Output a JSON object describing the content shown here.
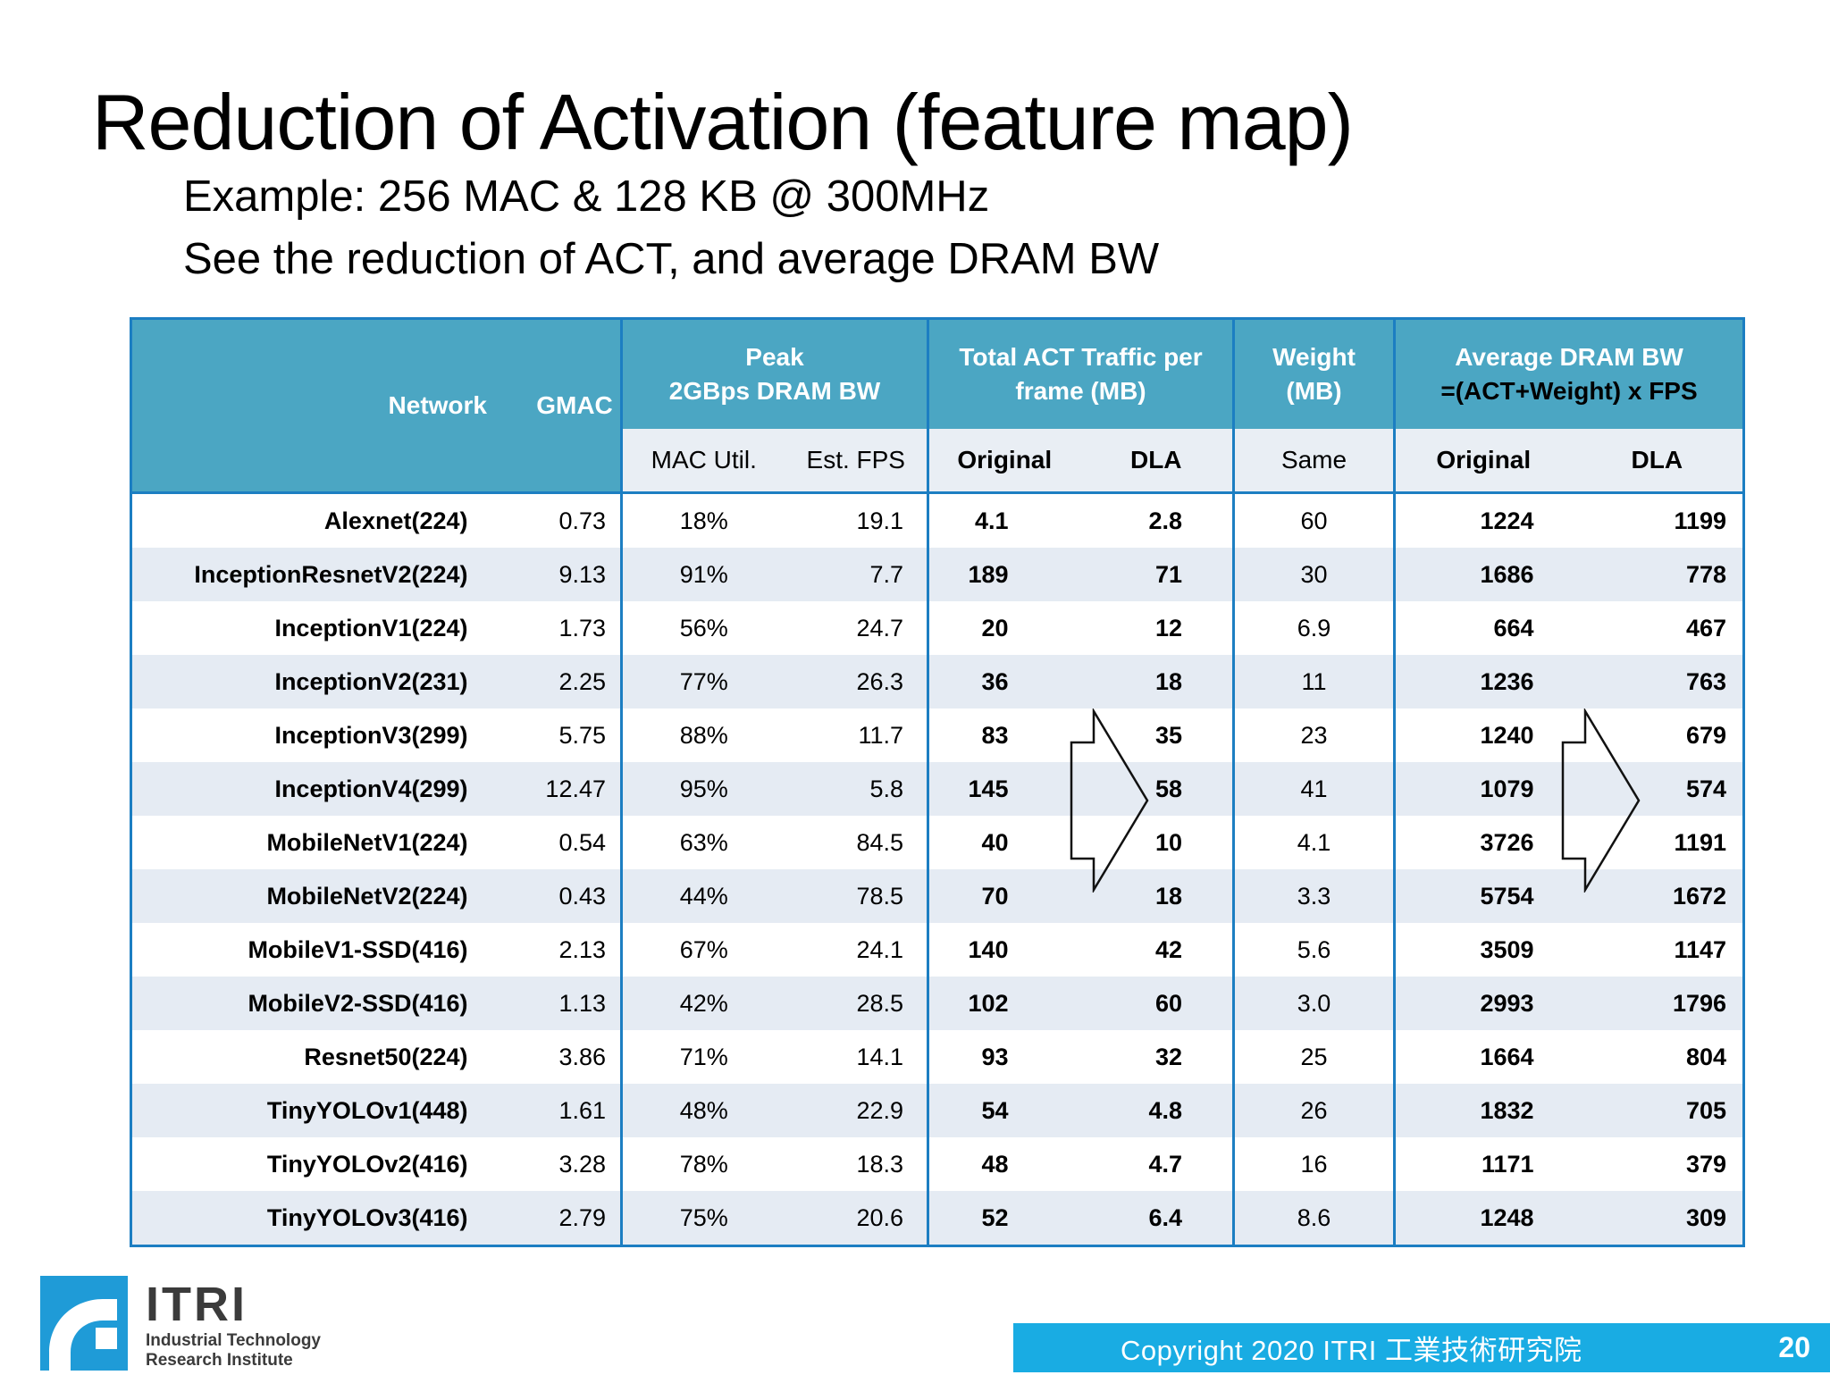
{
  "slide": {
    "title": "Reduction of Activation (feature map)",
    "subtitle_line1": "Example: 256  MAC & 128 KB @ 300MHz",
    "subtitle_line2": "See the reduction of ACT, and average DRAM BW"
  },
  "table": {
    "group_headers": {
      "network": "Network",
      "gmac": "GMAC",
      "peak_line1": "Peak",
      "peak_line2": "2GBps DRAM BW",
      "act_line1": "Total ACT Traffic per",
      "act_line2": "frame (MB)",
      "weight_line1": "Weight",
      "weight_line2": "(MB)",
      "avg_line1": "Average DRAM BW",
      "avg_line2": "=(ACT+Weight) x FPS"
    },
    "sub_headers": {
      "mac_util": "MAC Util.",
      "est_fps": "Est. FPS",
      "act_original": "Original",
      "act_dla": "DLA",
      "weight_same": "Same",
      "avg_original": "Original",
      "avg_dla": "DLA"
    },
    "rows": [
      {
        "network": "Alexnet(224)",
        "gmac": "0.73",
        "mac_util": "18%",
        "est_fps": "19.1",
        "act_original": "4.1",
        "act_dla": "2.8",
        "weight": "60",
        "avg_original": "1224",
        "avg_dla": "1199"
      },
      {
        "network": "InceptionResnetV2(224)",
        "gmac": "9.13",
        "mac_util": "91%",
        "est_fps": "7.7",
        "act_original": "189",
        "act_dla": "71",
        "weight": "30",
        "avg_original": "1686",
        "avg_dla": "778"
      },
      {
        "network": "InceptionV1(224)",
        "gmac": "1.73",
        "mac_util": "56%",
        "est_fps": "24.7",
        "act_original": "20",
        "act_dla": "12",
        "weight": "6.9",
        "avg_original": "664",
        "avg_dla": "467"
      },
      {
        "network": "InceptionV2(231)",
        "gmac": "2.25",
        "mac_util": "77%",
        "est_fps": "26.3",
        "act_original": "36",
        "act_dla": "18",
        "weight": "11",
        "avg_original": "1236",
        "avg_dla": "763"
      },
      {
        "network": "InceptionV3(299)",
        "gmac": "5.75",
        "mac_util": "88%",
        "est_fps": "11.7",
        "act_original": "83",
        "act_dla": "35",
        "weight": "23",
        "avg_original": "1240",
        "avg_dla": "679"
      },
      {
        "network": "InceptionV4(299)",
        "gmac": "12.47",
        "mac_util": "95%",
        "est_fps": "5.8",
        "act_original": "145",
        "act_dla": "58",
        "weight": "41",
        "avg_original": "1079",
        "avg_dla": "574"
      },
      {
        "network": "MobileNetV1(224)",
        "gmac": "0.54",
        "mac_util": "63%",
        "est_fps": "84.5",
        "act_original": "40",
        "act_dla": "10",
        "weight": "4.1",
        "avg_original": "3726",
        "avg_dla": "1191"
      },
      {
        "network": "MobileNetV2(224)",
        "gmac": "0.43",
        "mac_util": "44%",
        "est_fps": "78.5",
        "act_original": "70",
        "act_dla": "18",
        "weight": "3.3",
        "avg_original": "5754",
        "avg_dla": "1672"
      },
      {
        "network": "MobileV1-SSD(416)",
        "gmac": "2.13",
        "mac_util": "67%",
        "est_fps": "24.1",
        "act_original": "140",
        "act_dla": "42",
        "weight": "5.6",
        "avg_original": "3509",
        "avg_dla": "1147"
      },
      {
        "network": "MobileV2-SSD(416)",
        "gmac": "1.13",
        "mac_util": "42%",
        "est_fps": "28.5",
        "act_original": "102",
        "act_dla": "60",
        "weight": "3.0",
        "avg_original": "2993",
        "avg_dla": "1796"
      },
      {
        "network": "Resnet50(224)",
        "gmac": "3.86",
        "mac_util": "71%",
        "est_fps": "14.1",
        "act_original": "93",
        "act_dla": "32",
        "weight": "25",
        "avg_original": "1664",
        "avg_dla": "804"
      },
      {
        "network": "TinyYOLOv1(448)",
        "gmac": "1.61",
        "mac_util": "48%",
        "est_fps": "22.9",
        "act_original": "54",
        "act_dla": "4.8",
        "weight": "26",
        "avg_original": "1832",
        "avg_dla": "705"
      },
      {
        "network": "TinyYOLOv2(416)",
        "gmac": "3.28",
        "mac_util": "78%",
        "est_fps": "18.3",
        "act_original": "48",
        "act_dla": "4.7",
        "weight": "16",
        "avg_original": "1171",
        "avg_dla": "379"
      },
      {
        "network": "TinyYOLOv3(416)",
        "gmac": "2.79",
        "mac_util": "75%",
        "est_fps": "20.6",
        "act_original": "52",
        "act_dla": "6.4",
        "weight": "8.6",
        "avg_original": "1248",
        "avg_dla": "309"
      }
    ]
  },
  "footer": {
    "copyright": "Copyright 2020  ITRI  工業技術研究院",
    "page_number": "20"
  },
  "logo": {
    "name": "ITRI",
    "sub_line1": "Industrial Technology",
    "sub_line2": "Research Institute"
  },
  "colors": {
    "header_teal": "#4ba6c3",
    "band_light": "#e5ebf3",
    "border_blue": "#1c7ec2",
    "footer_cyan": "#19ace3",
    "logo_blue": "#1f9bd7"
  }
}
